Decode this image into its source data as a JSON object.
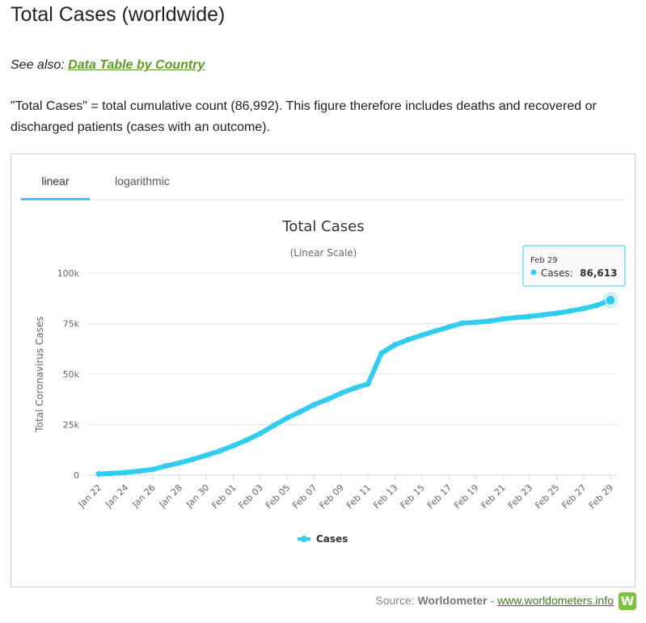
{
  "page": {
    "title": "Total Cases (worldwide)",
    "see_also_prefix": "See also:",
    "see_also_link": "Data Table by Country",
    "description": "\"Total Cases\" = total cumulative count (86,992). This figure therefore includes deaths and recovered or discharged patients (cases with an outcome)."
  },
  "tabs": [
    {
      "label": "linear",
      "active": true
    },
    {
      "label": "logarithmic",
      "active": false
    }
  ],
  "chart_data": {
    "type": "line",
    "title": "Total Cases",
    "subtitle": "(Linear Scale)",
    "ylabel": "Total Coronavirus Cases",
    "xlabel": "",
    "ylim": [
      0,
      100000
    ],
    "yticks": [
      0,
      25000,
      50000,
      75000,
      100000
    ],
    "ytick_labels": [
      "0",
      "25k",
      "50k",
      "75k",
      "100k"
    ],
    "x": [
      "Jan 22",
      "Jan 23",
      "Jan 24",
      "Jan 25",
      "Jan 26",
      "Jan 27",
      "Jan 28",
      "Jan 29",
      "Jan 30",
      "Jan 31",
      "Feb 01",
      "Feb 02",
      "Feb 03",
      "Feb 04",
      "Feb 05",
      "Feb 06",
      "Feb 07",
      "Feb 08",
      "Feb 09",
      "Feb 10",
      "Feb 11",
      "Feb 12",
      "Feb 13",
      "Feb 14",
      "Feb 15",
      "Feb 16",
      "Feb 17",
      "Feb 18",
      "Feb 19",
      "Feb 20",
      "Feb 21",
      "Feb 22",
      "Feb 23",
      "Feb 24",
      "Feb 25",
      "Feb 26",
      "Feb 27",
      "Feb 28",
      "Feb 29"
    ],
    "xtick_labels": [
      "Jan 22",
      "Jan 24",
      "Jan 26",
      "Jan 28",
      "Jan 30",
      "Feb 01",
      "Feb 03",
      "Feb 05",
      "Feb 07",
      "Feb 09",
      "Feb 11",
      "Feb 13",
      "Feb 15",
      "Feb 17",
      "Feb 19",
      "Feb 21",
      "Feb 23",
      "Feb 25",
      "Feb 27",
      "Feb 29"
    ],
    "series": [
      {
        "name": "Cases",
        "color": "#33ccee",
        "values": [
          580,
          845,
          1320,
          2015,
          2800,
          4580,
          6060,
          7820,
          9830,
          11950,
          14550,
          17390,
          20630,
          24550,
          28280,
          31480,
          34880,
          37560,
          40550,
          43100,
          45170,
          60380,
          64540,
          67100,
          69260,
          71340,
          73330,
          75230,
          75650,
          76250,
          77300,
          78000,
          78540,
          79350,
          80150,
          81220,
          82500,
          84100,
          86613
        ]
      }
    ],
    "grid": true,
    "legend_position": "bottom-center",
    "tooltip": {
      "date": "Feb 29",
      "label": "Cases:",
      "value": "86,613"
    }
  },
  "footer": {
    "source_prefix": "Source:",
    "source_name": "Worldometer",
    "separator": "-",
    "source_link": "www.worldometers.info",
    "logo_letter": "W"
  }
}
